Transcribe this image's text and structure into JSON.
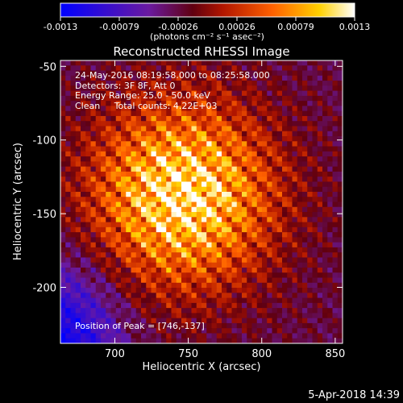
{
  "chart_data": {
    "type": "heatmap",
    "title": "Reconstructed RHESSI Image",
    "xlabel": "Heliocentric X (arcsec)",
    "ylabel": "Heliocentric Y (arcsec)",
    "xlim": [
      663,
      855
    ],
    "ylim": [
      -238,
      -46
    ],
    "xticks": [
      700,
      750,
      800,
      850
    ],
    "yticks": [
      -50,
      -100,
      -150,
      -200
    ],
    "colorbar": {
      "range": [
        -0.0013,
        0.0013
      ],
      "ticks": [
        "-0.0013",
        "-0.00079",
        "-0.00026",
        "0.00026",
        "0.00079",
        "0.0013"
      ],
      "unit_label": "(photons cm⁻² s⁻¹ asec⁻²)",
      "colormap": [
        "#0000ff",
        "#5a20b0",
        "#b02000",
        "#ff6a00",
        "#ffd000",
        "#ffffff"
      ]
    },
    "annotations": [
      "24-May-2016 08:19:58.000 to 08:25:58.000",
      "Detectors: 3F 8F, Att 0",
      "Energy Range: 25.0 - 50.0 keV",
      "Clean     Total counts: 4.22E+03"
    ],
    "peak_label": "Position of Peak = [746,-137]",
    "peak": {
      "x": 746,
      "y": -137
    },
    "grid": false
  },
  "footer": {
    "timestamp": "5-Apr-2018 14:39"
  }
}
